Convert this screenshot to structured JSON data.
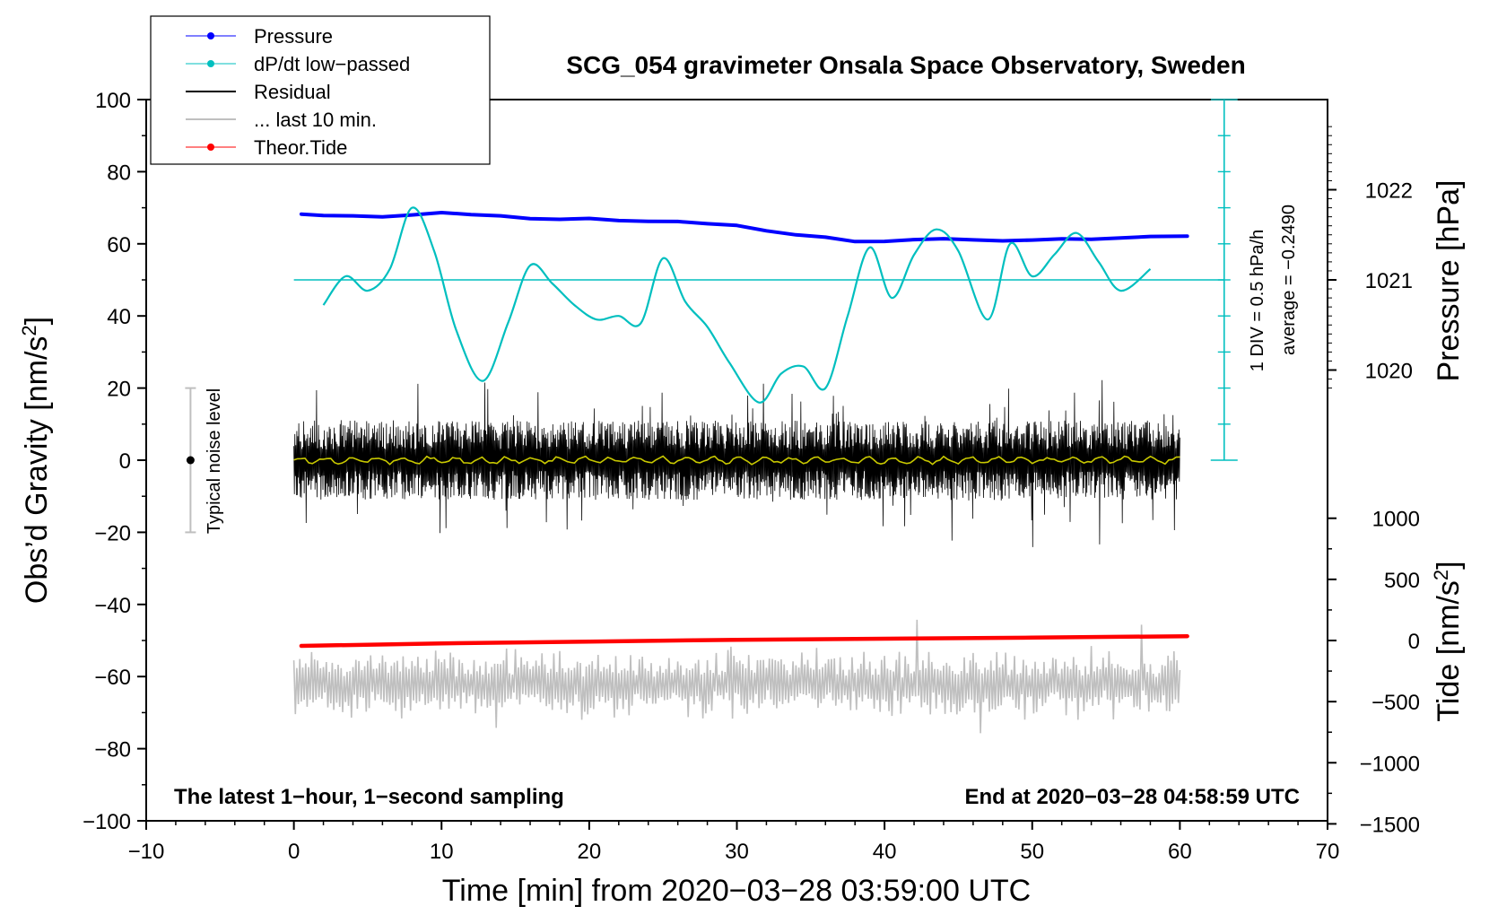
{
  "chart_data": {
    "type": "line",
    "title": "SCG_054 gravimeter Onsala Space Observatory, Sweden",
    "xlabel": "Time [min] from 2020−03−28 03:59:00 UTC",
    "ylabel_left": "Obs’d Gravity [nm/s",
    "ylabel_left_sup": "2",
    "ylabel_left_close": "]",
    "ylabel_pressure": "Pressure [hPa]",
    "ylabel_tide": "Tide [nm/s",
    "ylabel_tide_sup": "2",
    "ylabel_tide_close": "]",
    "xlim": [
      -10,
      70
    ],
    "ylim_left": [
      -100,
      100
    ],
    "xticks": [
      "−10",
      "0",
      "10",
      "20",
      "30",
      "40",
      "50",
      "60",
      "70"
    ],
    "xtick_values": [
      -10,
      0,
      10,
      20,
      30,
      40,
      50,
      60,
      70
    ],
    "yticks_left": [
      "100",
      "80",
      "60",
      "40",
      "20",
      "0",
      "−20",
      "−40",
      "−60",
      "−80",
      "−100"
    ],
    "ytick_left_values": [
      100,
      80,
      60,
      40,
      20,
      0,
      -20,
      -40,
      -60,
      -80,
      -100
    ],
    "pressure_ticks": [
      "1022",
      "1021",
      "1020"
    ],
    "pressure_tick_values": [
      1022,
      1021,
      1020
    ],
    "pressure_mapping": {
      "hpa_1021_at_gravity": 50,
      "hpa_per_div": 25
    },
    "tide_ticks": [
      "1000",
      "500",
      "0",
      "−500",
      "−1000",
      "−1500"
    ],
    "tide_tick_values": [
      1000,
      500,
      0,
      -500,
      -1000,
      -1500
    ],
    "tide_mapping": {
      "tide_0_at_gravity": -50,
      "nms2_per_gravity_unit": 29.5
    },
    "note_left": "The latest 1−hour, 1−second sampling",
    "note_right": "End at 2020−03−28 04:58:59 UTC",
    "noise_label": "Typical noise level",
    "noise_level": {
      "x": -7,
      "center": 0,
      "half_range": 20
    },
    "dpdt_scale_label": "1 DIV = 0.5 hPa/h",
    "dpdt_average_label": "average = −0.2490",
    "dpdt_scale_bar": {
      "x": 63,
      "y_bottom": 0,
      "y_top": 100,
      "divisions": 10,
      "baseline": 50
    },
    "legend": [
      {
        "label": "Pressure",
        "color": "#0000ff",
        "marker": true
      },
      {
        "label": "dP/dt low−passed",
        "color": "#00bfbf",
        "marker": true
      },
      {
        "label": "Residual",
        "color": "#000000",
        "marker": false
      },
      {
        "label": "... last 10 min.",
        "color": "#bfbfbf",
        "marker": false
      },
      {
        "label": "Theor.Tide",
        "color": "#ff0000",
        "marker": true
      }
    ],
    "series": [
      {
        "name": "Pressure",
        "color": "#0000ff",
        "width": 4,
        "x": [
          0.5,
          2,
          4,
          6,
          8,
          10,
          12,
          14,
          16,
          18,
          20,
          22,
          24,
          26,
          28,
          30,
          32,
          34,
          36,
          38,
          40,
          42,
          44,
          46,
          48,
          50,
          52,
          54,
          56,
          58,
          60.5
        ],
        "y": [
          68,
          67.8,
          67.9,
          67.7,
          68.2,
          68.8,
          68.3,
          67.6,
          67.1,
          66.9,
          66.8,
          66.3,
          66.0,
          66.1,
          65.5,
          64.9,
          63.6,
          62.6,
          61.9,
          60.6,
          60.9,
          61.3,
          61.3,
          61.0,
          60.8,
          61.1,
          61.3,
          61.4,
          61.6,
          61.8,
          62.0
        ]
      },
      {
        "name": "dP/dt low-passed",
        "color": "#00bfbf",
        "width": 2.2,
        "x": [
          2,
          3.5,
          5,
          6.5,
          8,
          9.5,
          11,
          12.8,
          14.5,
          16,
          17.5,
          19,
          20.5,
          22,
          23.5,
          25,
          26.5,
          28,
          29.5,
          31.5,
          33,
          34.5,
          36,
          37.5,
          39,
          40.5,
          42,
          43.5,
          45,
          47,
          48.5,
          50,
          51.5,
          53,
          54.5,
          56,
          58
        ],
        "y": [
          43,
          51,
          47,
          53,
          70,
          58,
          36,
          22,
          38,
          54,
          49,
          43,
          39,
          40,
          38,
          56,
          44,
          37,
          27,
          16,
          24,
          26,
          20,
          40,
          59,
          45,
          57,
          64,
          58,
          39,
          60,
          51,
          57,
          63,
          55,
          47,
          53
        ]
      },
      {
        "name": "Theor.Tide",
        "color": "#ff0000",
        "width": 4.5,
        "x": [
          0.5,
          10,
          20,
          30,
          40,
          50,
          60.5
        ],
        "y": [
          -51.5,
          -50.8,
          -50.3,
          -49.8,
          -49.5,
          -49.2,
          -48.8
        ]
      }
    ],
    "residual": {
      "name": "Residual",
      "color": "#000000",
      "smoothed_color": "#c8c800",
      "x_start": 0,
      "x_end": 60,
      "typical_amplitude": 10,
      "max_amplitude": 26
    },
    "last_10_min": {
      "name": "... last 10 min.",
      "color": "#bfbfbf",
      "center": -62,
      "x_start": 0,
      "x_end": 60,
      "typical_amplitude": 7,
      "max_amplitude": 20
    }
  }
}
